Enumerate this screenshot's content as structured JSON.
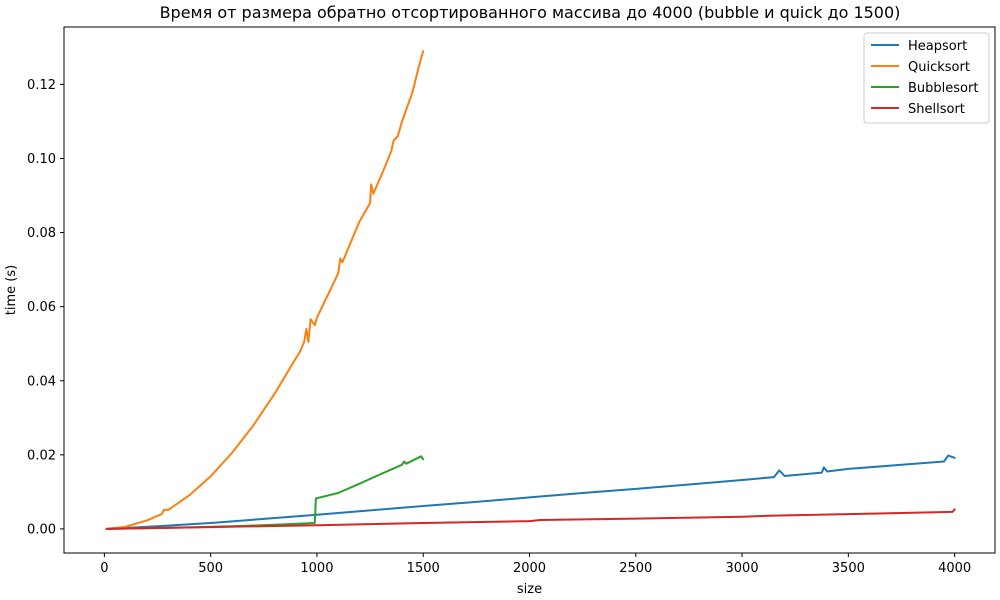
{
  "chart_data": {
    "type": "line",
    "title": "Время от размера обратно отсортированного массива до 4000 (bubble и quick до 1500)",
    "xlabel": "size",
    "ylabel": "time (s)",
    "xlim": [
      -190,
      4190
    ],
    "ylim": [
      -0.0065,
      0.1355
    ],
    "xticks": [
      0,
      500,
      1000,
      1500,
      2000,
      2500,
      3000,
      3500,
      4000
    ],
    "yticks": [
      0.0,
      0.02,
      0.04,
      0.06,
      0.08,
      0.1,
      0.12
    ],
    "ytick_labels": [
      "0.00",
      "0.02",
      "0.04",
      "0.06",
      "0.08",
      "0.10",
      "0.12"
    ],
    "grid": false,
    "legend_position": "top-right",
    "series": [
      {
        "name": "Heapsort",
        "color": "#1f77b4",
        "x": [
          10,
          250,
          500,
          750,
          1000,
          1250,
          1500,
          1750,
          2000,
          2250,
          2500,
          2750,
          3000,
          3150,
          3175,
          3200,
          3375,
          3385,
          3400,
          3500,
          3750,
          3950,
          3970,
          4000
        ],
        "y": [
          0.0,
          0.0007,
          0.0016,
          0.0027,
          0.0038,
          0.005,
          0.0062,
          0.0073,
          0.0085,
          0.0097,
          0.0108,
          0.012,
          0.0132,
          0.014,
          0.0158,
          0.0143,
          0.0152,
          0.0166,
          0.0155,
          0.0162,
          0.0173,
          0.0182,
          0.0198,
          0.0192
        ]
      },
      {
        "name": "Quicksort",
        "color": "#ff7f0e",
        "x": [
          10,
          100,
          200,
          270,
          280,
          300,
          400,
          500,
          600,
          700,
          800,
          900,
          920,
          940,
          950,
          960,
          970,
          990,
          1000,
          1100,
          1110,
          1120,
          1200,
          1250,
          1255,
          1265,
          1300,
          1350,
          1360,
          1380,
          1400,
          1450,
          1480,
          1500
        ],
        "y": [
          0.0,
          0.0006,
          0.0023,
          0.004,
          0.0052,
          0.0051,
          0.0091,
          0.0142,
          0.0205,
          0.0279,
          0.0364,
          0.046,
          0.0478,
          0.0505,
          0.054,
          0.0505,
          0.0566,
          0.055,
          0.057,
          0.069,
          0.073,
          0.072,
          0.083,
          0.088,
          0.093,
          0.0905,
          0.095,
          0.102,
          0.1048,
          0.106,
          0.11,
          0.118,
          0.125,
          0.129
        ]
      },
      {
        "name": "Bubblesort",
        "color": "#2ca02c",
        "x": [
          10,
          200,
          400,
          600,
          800,
          990,
          995,
          1000,
          1100,
          1200,
          1300,
          1400,
          1410,
          1420,
          1490,
          1500
        ],
        "y": [
          0.0,
          0.0002,
          0.0004,
          0.0007,
          0.0011,
          0.0016,
          0.0082,
          0.0083,
          0.0097,
          0.0122,
          0.0148,
          0.0173,
          0.0182,
          0.0176,
          0.0196,
          0.0188
        ]
      },
      {
        "name": "Shellsort",
        "color": "#d62728",
        "x": [
          10,
          500,
          1000,
          1500,
          2000,
          2050,
          2500,
          3000,
          3150,
          3500,
          3990,
          4000
        ],
        "y": [
          0.0,
          0.0005,
          0.001,
          0.0016,
          0.0021,
          0.0024,
          0.0028,
          0.0033,
          0.0036,
          0.004,
          0.0046,
          0.0053
        ]
      }
    ]
  }
}
